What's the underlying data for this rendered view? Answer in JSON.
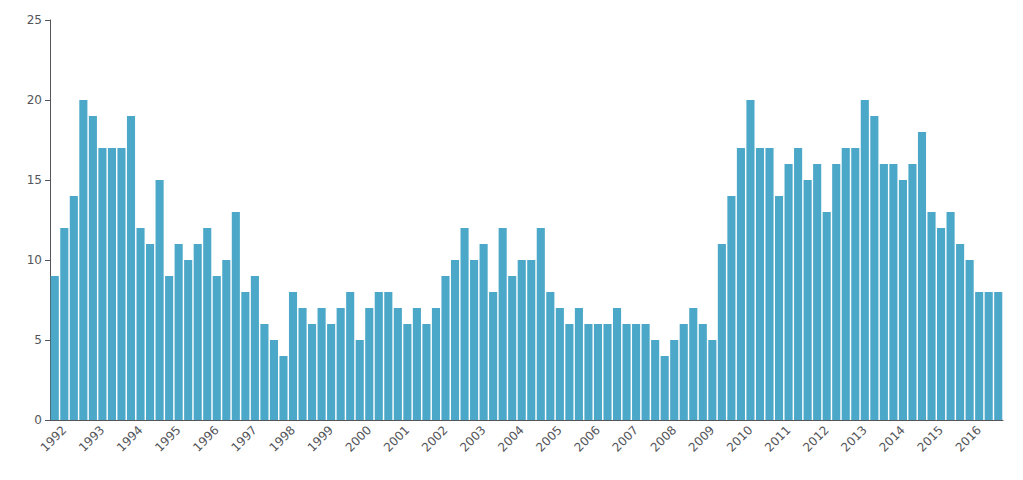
{
  "chart_data": {
    "type": "bar",
    "categories": [
      null,
      "1992",
      null,
      null,
      null,
      "1993",
      null,
      null,
      null,
      "1994",
      null,
      null,
      null,
      "1995",
      null,
      null,
      null,
      "1996",
      null,
      null,
      null,
      "1997",
      null,
      null,
      null,
      "1998",
      null,
      null,
      null,
      "1999",
      null,
      null,
      null,
      "2000",
      null,
      null,
      null,
      "2001",
      null,
      null,
      null,
      "2002",
      null,
      null,
      null,
      "2003",
      null,
      null,
      null,
      "2004",
      null,
      null,
      null,
      "2005",
      null,
      null,
      null,
      "2006",
      null,
      null,
      null,
      "2007",
      null,
      null,
      null,
      "2008",
      null,
      null,
      null,
      "2009",
      null,
      null,
      null,
      "2010",
      null,
      null,
      null,
      "2011",
      null,
      null,
      null,
      "2012",
      null,
      null,
      null,
      "2013",
      null,
      null,
      null,
      "2014",
      null,
      null,
      null,
      "2015",
      null,
      null,
      null,
      "2016",
      null,
      null
    ],
    "values": [
      9,
      12,
      14,
      20,
      19,
      17,
      17,
      17,
      19,
      12,
      11,
      15,
      9,
      11,
      10,
      11,
      12,
      9,
      10,
      13,
      8,
      9,
      6,
      5,
      4,
      8,
      7,
      6,
      7,
      6,
      7,
      8,
      5,
      7,
      8,
      8,
      7,
      6,
      7,
      6,
      7,
      9,
      10,
      12,
      10,
      11,
      8,
      12,
      9,
      10,
      10,
      12,
      8,
      7,
      6,
      7,
      6,
      6,
      6,
      7,
      6,
      6,
      6,
      5,
      4,
      5,
      6,
      7,
      6,
      5,
      11,
      14,
      17,
      20,
      17,
      17,
      14,
      16,
      17,
      15,
      16,
      13,
      16,
      17,
      17,
      20,
      19,
      16,
      16,
      15,
      16,
      18,
      13,
      12,
      13,
      11,
      10,
      8,
      8,
      8
    ],
    "color": "#4BA8C8",
    "ylim": [
      0,
      25
    ],
    "yticks": [
      0,
      5,
      10,
      15,
      20,
      25
    ],
    "grid": false
  }
}
